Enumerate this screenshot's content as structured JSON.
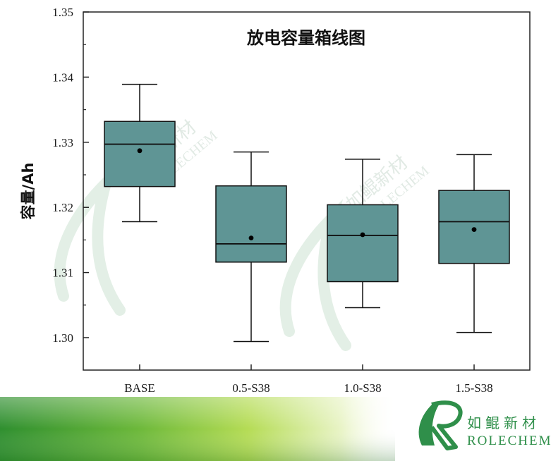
{
  "chart_data": {
    "type": "box",
    "title": "放电容量箱线图",
    "xlabel": "",
    "ylabel": "容量/Ah",
    "ylim": [
      1.3,
      1.35
    ],
    "yticks": [
      "1.30",
      "1.31",
      "1.32",
      "1.33",
      "1.34",
      "1.35"
    ],
    "categories": [
      "BASE",
      "0.5-S38",
      "1.0-S38",
      "1.5-S38"
    ],
    "boxes": [
      {
        "category": "BASE",
        "whisker_low": 1.3178,
        "q1": 1.3232,
        "median": 1.3297,
        "q3": 1.3332,
        "whisker_high": 1.3389,
        "mean": 1.3287
      },
      {
        "category": "0.5-S38",
        "whisker_low": 1.2994,
        "q1": 1.3116,
        "median": 1.3144,
        "q3": 1.3233,
        "whisker_high": 1.3285,
        "mean": 1.3153
      },
      {
        "category": "1.0-S38",
        "whisker_low": 1.3046,
        "q1": 1.3086,
        "median": 1.3157,
        "q3": 1.3204,
        "whisker_high": 1.3274,
        "mean": 1.3158
      },
      {
        "category": "1.5-S38",
        "whisker_low": 1.3008,
        "q1": 1.3114,
        "median": 1.3178,
        "q3": 1.3226,
        "whisker_high": 1.3281,
        "mean": 1.3166
      }
    ],
    "box_color": "#5f9595",
    "grid": false,
    "legend": "none"
  },
  "watermark": {
    "cn": "如鲲新材",
    "en": "ROLECHEM"
  },
  "brand": {
    "cn": "如鲲新材",
    "en": "ROLECHEM",
    "color": "#2f8f4a"
  },
  "footer_colors": [
    "#2f8f2f",
    "#9ccf3c",
    "#e6f2b8"
  ]
}
